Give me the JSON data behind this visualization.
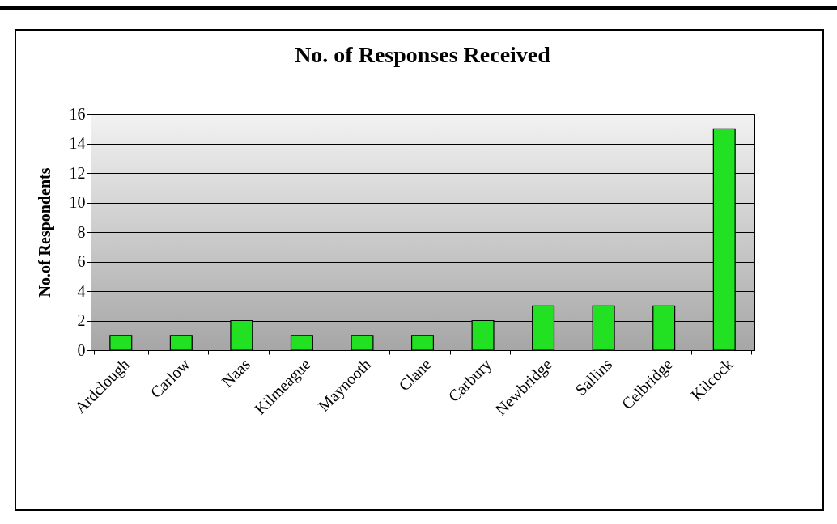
{
  "chart_data": {
    "type": "bar",
    "title": "No. of Responses Received",
    "ylabel": "No.of Respondents",
    "categories": [
      "Ardclough",
      "Carlow",
      "Naas",
      "Kilmeague",
      "Maynooth",
      "Clane",
      "Carbury",
      "Newbridge",
      "Sallins",
      "Celbridge",
      "Kilcock"
    ],
    "values": [
      1,
      1,
      2,
      1,
      1,
      1,
      2,
      3,
      3,
      3,
      15
    ],
    "color": "#22e022",
    "ylim": [
      0,
      16
    ],
    "yticks": [
      0,
      2,
      4,
      6,
      8,
      10,
      12,
      14,
      16
    ],
    "grid": "y"
  }
}
